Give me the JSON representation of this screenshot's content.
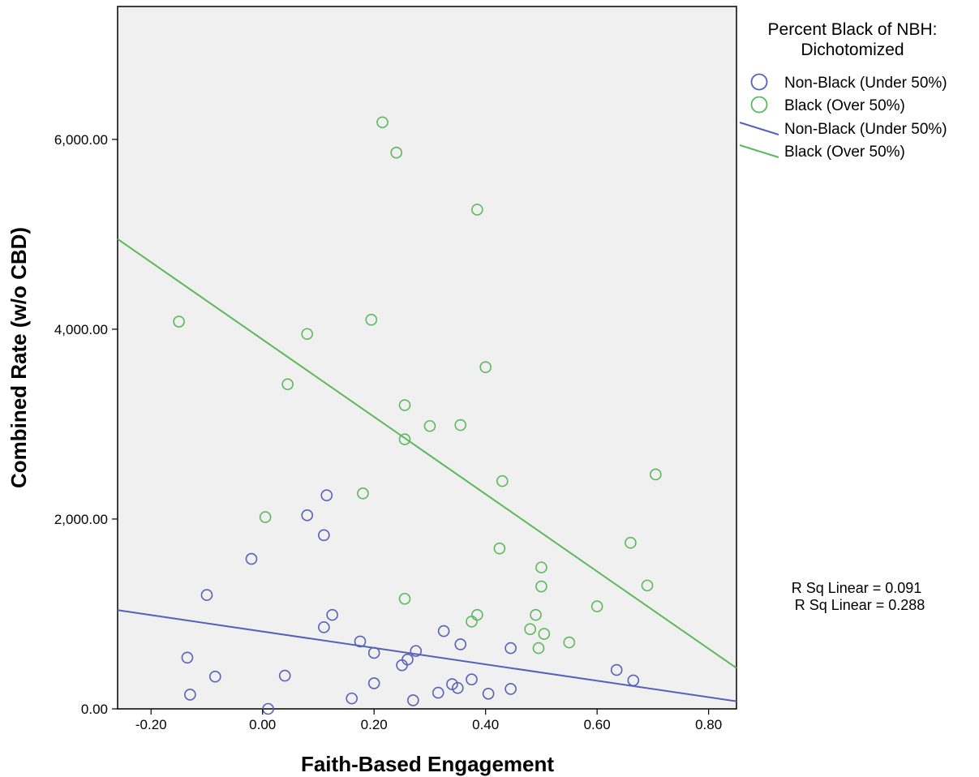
{
  "chart_data": {
    "type": "scatter",
    "xlabel": "Faith-Based Engagement",
    "ylabel": "Combined Rate (w/o CBD)",
    "xlim": [
      -0.26,
      0.85
    ],
    "ylim": [
      0,
      7400
    ],
    "x_ticks": [
      -0.2,
      0.0,
      0.2,
      0.4,
      0.6,
      0.8
    ],
    "x_tick_labels": [
      "-0.20",
      "0.00",
      "0.20",
      "0.40",
      "0.60",
      "0.80"
    ],
    "y_ticks": [
      0,
      2000,
      4000,
      6000
    ],
    "y_tick_labels": [
      "0.00",
      "2,000.00",
      "4,000.00",
      "6,000.00"
    ],
    "grid": false,
    "background_color": "#f0f0f0",
    "legend": {
      "title_line1": "Percent Black of NBH:",
      "title_line2": "Dichotomized",
      "placement": "right",
      "entries": [
        {
          "label": "Non-Black (Under 50%)",
          "kind": "marker",
          "color": "#5561b8"
        },
        {
          "label": "Black (Over 50%)",
          "kind": "marker",
          "color": "#5cb85c"
        },
        {
          "label": "Non-Black (Under 50%)",
          "kind": "line",
          "color": "#5561b8"
        },
        {
          "label": "Black (Over 50%)",
          "kind": "line",
          "color": "#5cb85c"
        }
      ]
    },
    "annotations": [
      "R Sq Linear = 0.091",
      "R Sq Linear = 0.288"
    ],
    "series": [
      {
        "name": "Non-Black (Under 50%)",
        "color": "#5561b8",
        "fit": {
          "x": [
            -0.26,
            0.85
          ],
          "y": [
            1040,
            80
          ]
        },
        "points": [
          {
            "x": -0.135,
            "y": 540
          },
          {
            "x": -0.13,
            "y": 150
          },
          {
            "x": -0.085,
            "y": 340
          },
          {
            "x": -0.1,
            "y": 1200
          },
          {
            "x": -0.02,
            "y": 1580
          },
          {
            "x": 0.01,
            "y": 0
          },
          {
            "x": 0.04,
            "y": 350
          },
          {
            "x": 0.08,
            "y": 2040
          },
          {
            "x": 0.115,
            "y": 2250
          },
          {
            "x": 0.11,
            "y": 1830
          },
          {
            "x": 0.11,
            "y": 860
          },
          {
            "x": 0.125,
            "y": 990
          },
          {
            "x": 0.16,
            "y": 110
          },
          {
            "x": 0.175,
            "y": 710
          },
          {
            "x": 0.2,
            "y": 590
          },
          {
            "x": 0.2,
            "y": 270
          },
          {
            "x": 0.25,
            "y": 460
          },
          {
            "x": 0.26,
            "y": 520
          },
          {
            "x": 0.275,
            "y": 610
          },
          {
            "x": 0.27,
            "y": 90
          },
          {
            "x": 0.315,
            "y": 170
          },
          {
            "x": 0.325,
            "y": 820
          },
          {
            "x": 0.34,
            "y": 260
          },
          {
            "x": 0.35,
            "y": 220
          },
          {
            "x": 0.355,
            "y": 680
          },
          {
            "x": 0.375,
            "y": 310
          },
          {
            "x": 0.405,
            "y": 160
          },
          {
            "x": 0.445,
            "y": 640
          },
          {
            "x": 0.445,
            "y": 210
          },
          {
            "x": 0.635,
            "y": 410
          },
          {
            "x": 0.665,
            "y": 300
          }
        ]
      },
      {
        "name": "Black (Over 50%)",
        "color": "#5cb85c",
        "fit": {
          "x": [
            -0.26,
            0.85
          ],
          "y": [
            4950,
            430
          ]
        },
        "points": [
          {
            "x": -0.15,
            "y": 4080
          },
          {
            "x": 0.005,
            "y": 2020
          },
          {
            "x": 0.045,
            "y": 3420
          },
          {
            "x": 0.08,
            "y": 3950
          },
          {
            "x": 0.18,
            "y": 2270
          },
          {
            "x": 0.195,
            "y": 4100
          },
          {
            "x": 0.215,
            "y": 6180
          },
          {
            "x": 0.24,
            "y": 5860
          },
          {
            "x": 0.255,
            "y": 3200
          },
          {
            "x": 0.255,
            "y": 2840
          },
          {
            "x": 0.255,
            "y": 1160
          },
          {
            "x": 0.3,
            "y": 2980
          },
          {
            "x": 0.355,
            "y": 2990
          },
          {
            "x": 0.375,
            "y": 920
          },
          {
            "x": 0.385,
            "y": 990
          },
          {
            "x": 0.385,
            "y": 5260
          },
          {
            "x": 0.4,
            "y": 3600
          },
          {
            "x": 0.425,
            "y": 1690
          },
          {
            "x": 0.43,
            "y": 2400
          },
          {
            "x": 0.48,
            "y": 840
          },
          {
            "x": 0.49,
            "y": 990
          },
          {
            "x": 0.495,
            "y": 640
          },
          {
            "x": 0.5,
            "y": 1490
          },
          {
            "x": 0.5,
            "y": 1290
          },
          {
            "x": 0.505,
            "y": 790
          },
          {
            "x": 0.55,
            "y": 700
          },
          {
            "x": 0.6,
            "y": 1080
          },
          {
            "x": 0.66,
            "y": 1750
          },
          {
            "x": 0.69,
            "y": 1300
          },
          {
            "x": 0.705,
            "y": 2470
          }
        ]
      }
    ]
  }
}
